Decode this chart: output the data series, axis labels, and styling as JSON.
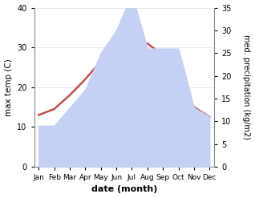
{
  "months": [
    "Jan",
    "Feb",
    "Mar",
    "Apr",
    "May",
    "Jun",
    "Jul",
    "Aug",
    "Sep",
    "Oct",
    "Nov",
    "Dec"
  ],
  "max_temp": [
    13.0,
    14.5,
    18.0,
    22.0,
    26.5,
    30.0,
    31.5,
    31.0,
    28.0,
    22.5,
    15.0,
    12.5
  ],
  "precipitation": [
    9.0,
    9.0,
    13.0,
    17.0,
    25.0,
    30.0,
    38.0,
    26.0,
    26.0,
    26.0,
    13.0,
    11.0
  ],
  "temp_color": "#c0504d",
  "precip_fill_color": "#c5d0f5",
  "temp_ylim": [
    0,
    40
  ],
  "precip_ylim": [
    0,
    35
  ],
  "xlabel": "date (month)",
  "ylabel_left": "max temp (C)",
  "ylabel_right": "med. precipitation (kg/m2)",
  "temp_yticks": [
    0,
    10,
    20,
    30,
    40
  ],
  "precip_yticks": [
    0,
    5,
    10,
    15,
    20,
    25,
    30,
    35
  ],
  "bg_color": "#ffffff",
  "line_width": 1.8
}
